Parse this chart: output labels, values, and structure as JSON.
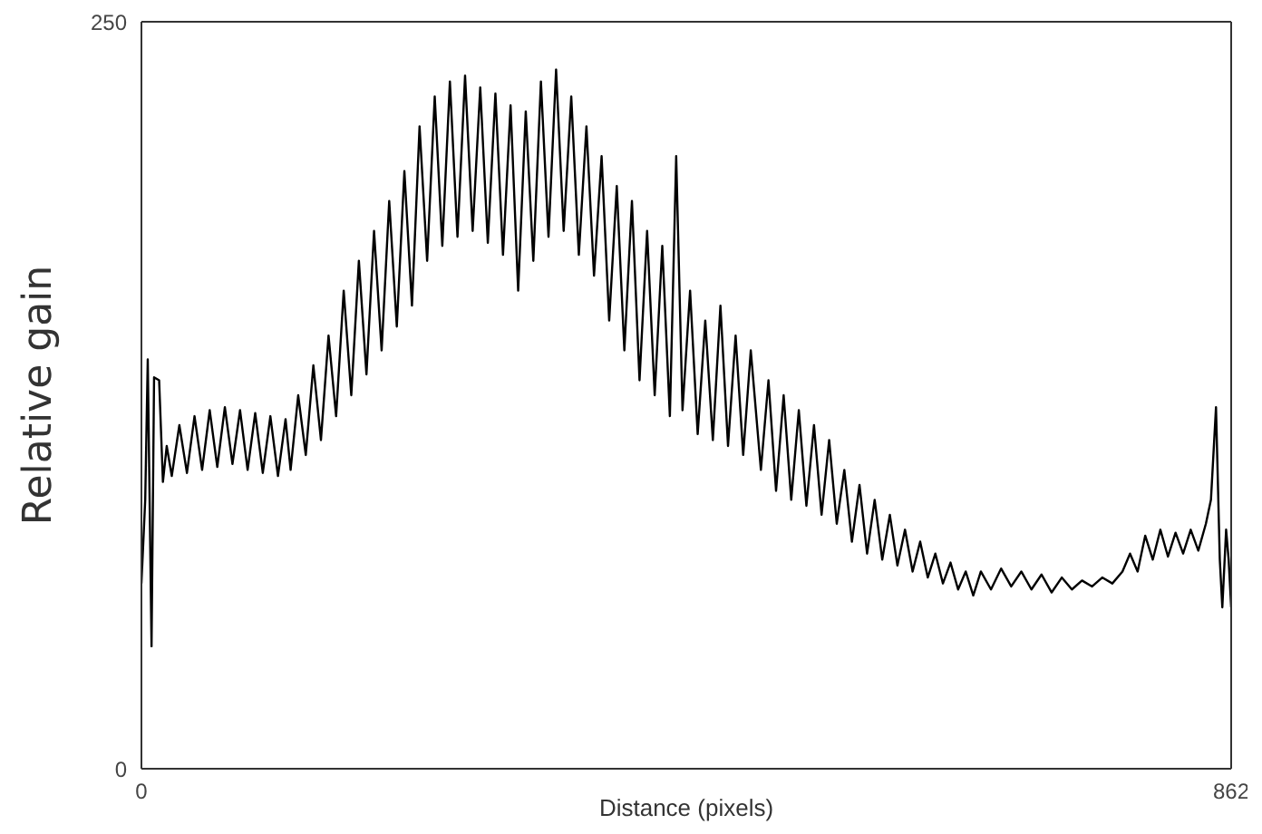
{
  "chart_data": {
    "type": "line",
    "xlabel": "Distance (pixels)",
    "ylabel": "Relative gain",
    "xlim": [
      0,
      862
    ],
    "xticks": [
      0,
      862
    ],
    "ylim": [
      0,
      250
    ],
    "yticks": [
      0,
      250
    ],
    "x": [
      0,
      3,
      5,
      8,
      10,
      14,
      17,
      20,
      24,
      30,
      36,
      42,
      48,
      54,
      60,
      66,
      72,
      78,
      84,
      90,
      96,
      102,
      108,
      114,
      118,
      124,
      130,
      136,
      142,
      148,
      154,
      160,
      166,
      172,
      178,
      184,
      190,
      196,
      202,
      208,
      214,
      220,
      226,
      232,
      238,
      244,
      250,
      256,
      262,
      268,
      274,
      280,
      286,
      292,
      298,
      304,
      310,
      316,
      322,
      328,
      334,
      340,
      346,
      352,
      358,
      364,
      370,
      376,
      382,
      388,
      394,
      400,
      406,
      412,
      418,
      423,
      428,
      434,
      440,
      446,
      452,
      458,
      464,
      470,
      476,
      482,
      490,
      496,
      502,
      508,
      514,
      520,
      526,
      532,
      538,
      544,
      550,
      556,
      562,
      568,
      574,
      580,
      586,
      592,
      598,
      604,
      610,
      616,
      622,
      628,
      634,
      640,
      646,
      652,
      658,
      664,
      672,
      680,
      688,
      696,
      704,
      712,
      720,
      728,
      736,
      744,
      752,
      760,
      768,
      776,
      782,
      788,
      794,
      800,
      806,
      812,
      818,
      824,
      830,
      836,
      842,
      846,
      850,
      853,
      855,
      858,
      860,
      862
    ],
    "series": [
      {
        "color": "#000000",
        "values": [
          62,
          90,
          137,
          41,
          131,
          130,
          96,
          108,
          98,
          115,
          99,
          118,
          100,
          120,
          101,
          121,
          102,
          120,
          100,
          119,
          99,
          118,
          98,
          117,
          100,
          125,
          105,
          135,
          110,
          145,
          118,
          160,
          125,
          170,
          132,
          180,
          140,
          190,
          148,
          200,
          155,
          215,
          170,
          225,
          175,
          230,
          178,
          232,
          180,
          228,
          176,
          226,
          172,
          222,
          160,
          220,
          170,
          230,
          178,
          234,
          180,
          225,
          172,
          215,
          165,
          205,
          150,
          195,
          140,
          190,
          130,
          180,
          125,
          175,
          118,
          205,
          120,
          160,
          112,
          150,
          110,
          155,
          108,
          145,
          105,
          140,
          100,
          130,
          93,
          125,
          90,
          120,
          88,
          115,
          85,
          110,
          82,
          100,
          76,
          95,
          72,
          90,
          70,
          85,
          68,
          80,
          66,
          76,
          64,
          72,
          62,
          69,
          60,
          66,
          58,
          66,
          60,
          67,
          61,
          66,
          60,
          65,
          59,
          64,
          60,
          63,
          61,
          64,
          62,
          66,
          72,
          66,
          78,
          70,
          80,
          71,
          79,
          72,
          80,
          73,
          82,
          90,
          121,
          70,
          54,
          80,
          70,
          54
        ]
      }
    ]
  }
}
